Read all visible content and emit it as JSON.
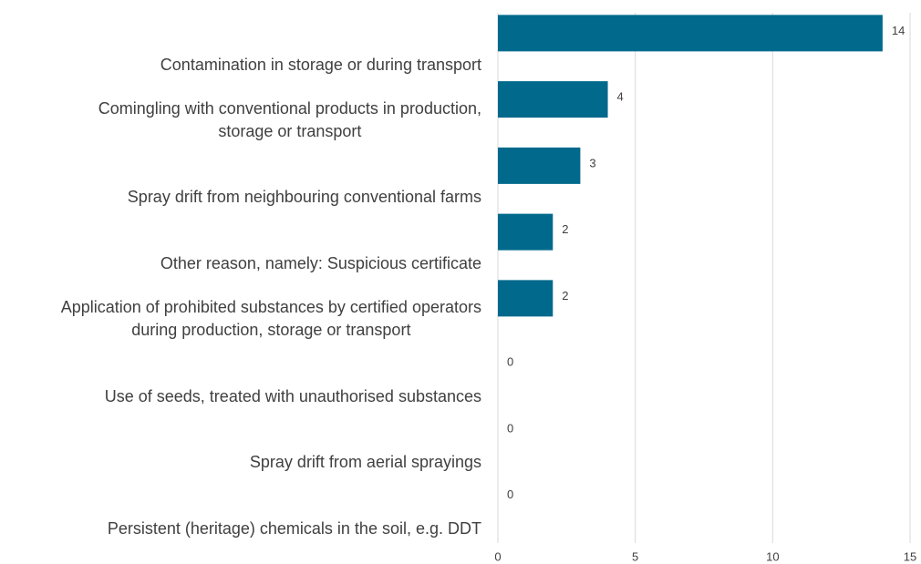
{
  "chart_data": {
    "type": "bar",
    "orientation": "horizontal",
    "categories": [
      "Contamination in storage or during transport",
      "Comingling with conventional products in production,\nstorage or transport",
      "Spray drift from neighbouring conventional farms",
      "Other reason, namely: Suspicious certificate",
      "Application of prohibited substances by certified operators\nduring production, storage or transport",
      "Use of seeds, treated with unauthorised substances",
      "Spray drift from aerial sprayings",
      "Persistent (heritage) chemicals in the soil, e.g. DDT"
    ],
    "values": [
      14,
      4,
      3,
      2,
      2,
      0,
      0,
      0
    ],
    "color": "#00698c",
    "xlim": [
      0,
      15
    ],
    "xticks": [
      0,
      5,
      10,
      15
    ],
    "grid": true
  }
}
